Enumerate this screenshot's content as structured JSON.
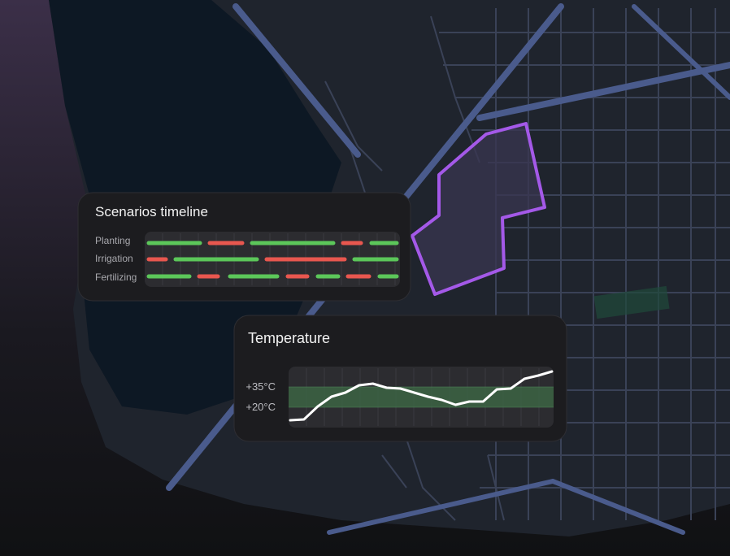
{
  "scenarios": {
    "title": "Scenarios timeline",
    "rows": [
      "Planting",
      "Irrigation",
      "Fertilizing"
    ]
  },
  "temperature": {
    "title": "Temperature",
    "type": "line",
    "color": "#ffffff",
    "ylim": [
      5,
      50
    ],
    "yticks": [
      {
        "value": 35,
        "label": "+35°C"
      },
      {
        "value": 20,
        "label": "+20°C"
      }
    ],
    "values": [
      10.4,
      11,
      20.6,
      27.8,
      30.8,
      36.2,
      37.4,
      34.4,
      33.8,
      30.8,
      27.8,
      25.4,
      21.8,
      24.2,
      24.2,
      33.2,
      33.8,
      41,
      43.4,
      46.4
    ]
  }
}
